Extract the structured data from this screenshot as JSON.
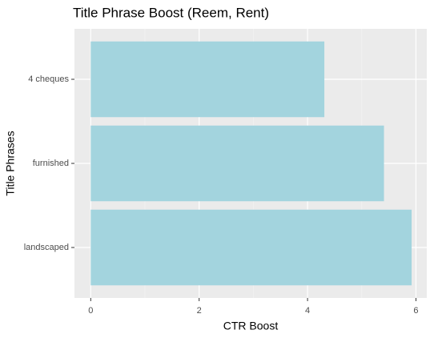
{
  "chart_data": {
    "type": "bar",
    "orientation": "horizontal",
    "title": "Title Phrase Boost (Reem, Rent)",
    "x_label": "CTR Boost",
    "y_label": "Title Phrases",
    "categories": [
      "4 cheques",
      "furnished",
      "landscaped"
    ],
    "values": [
      4.31,
      5.41,
      5.92
    ],
    "color": "#a3d4de",
    "xlim": [
      -0.3,
      6.2
    ],
    "xticks": [
      0,
      2,
      4,
      6
    ],
    "grid": true
  }
}
